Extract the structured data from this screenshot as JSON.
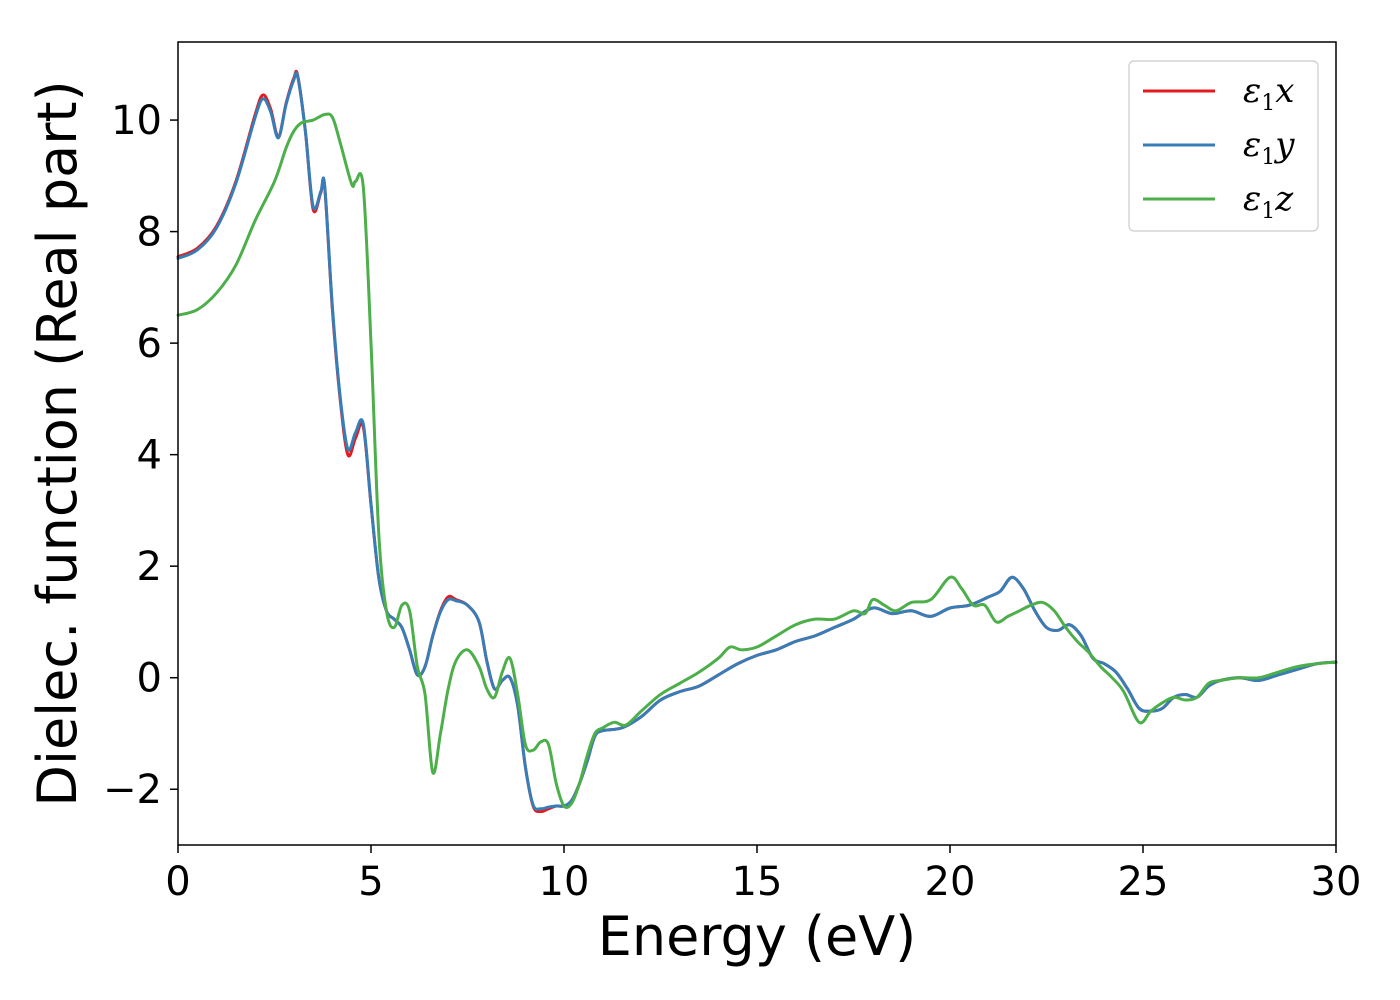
{
  "chart_data": {
    "type": "line",
    "title": "",
    "xlabel": "Energy (eV)",
    "ylabel": "Dielec. function (Real part)",
    "xlim": [
      0,
      30
    ],
    "ylim": [
      -3.0,
      11.4
    ],
    "xticks": [
      0,
      5,
      10,
      15,
      20,
      25,
      30
    ],
    "yticks": [
      -2,
      0,
      2,
      4,
      6,
      8,
      10
    ],
    "ytick_labels": [
      "−2",
      "0",
      "2",
      "4",
      "6",
      "8",
      "10"
    ],
    "grid": false,
    "legend_position": "top-right",
    "series": [
      {
        "name": "ε1x",
        "symbol": "ε",
        "subscript": "1",
        "axis": "x",
        "color": "#e41a1c",
        "x": [
          0,
          0.5,
          1.0,
          1.5,
          2.0,
          2.2,
          2.4,
          2.6,
          2.8,
          3.0,
          3.1,
          3.3,
          3.5,
          3.7,
          3.8,
          4.0,
          4.2,
          4.4,
          4.6,
          4.8,
          5.0,
          5.2,
          5.4,
          5.6,
          5.8,
          6.0,
          6.2,
          6.4,
          6.6,
          6.8,
          7.0,
          7.2,
          7.5,
          7.8,
          8.0,
          8.2,
          8.4,
          8.6,
          8.8,
          9.0,
          9.2,
          9.4,
          9.6,
          9.8,
          10.0,
          10.2,
          10.4,
          10.6,
          10.8,
          11.0,
          11.5,
          12.0,
          12.5,
          13.0,
          13.5,
          14.0,
          14.5,
          15.0,
          15.5,
          16.0,
          16.5,
          17.0,
          17.5,
          18.0,
          18.5,
          19.0,
          19.5,
          20.0,
          20.5,
          21.0,
          21.3,
          21.6,
          21.9,
          22.2,
          22.5,
          22.8,
          23.1,
          23.4,
          23.7,
          24.0,
          24.3,
          24.6,
          24.9,
          25.2,
          25.5,
          25.8,
          26.1,
          26.4,
          26.7,
          27.0,
          27.5,
          28.0,
          28.5,
          29.0,
          29.5,
          30.0
        ],
        "y": [
          7.55,
          7.7,
          8.1,
          8.9,
          10.1,
          10.45,
          10.2,
          9.7,
          10.3,
          10.75,
          10.8,
          9.8,
          8.4,
          8.7,
          8.8,
          6.6,
          5.0,
          4.0,
          4.3,
          4.5,
          3.1,
          1.8,
          1.2,
          1.05,
          0.9,
          0.5,
          0.05,
          0.2,
          0.75,
          1.2,
          1.45,
          1.4,
          1.3,
          1.0,
          0.3,
          -0.2,
          -0.05,
          0.0,
          -0.5,
          -1.6,
          -2.3,
          -2.4,
          -2.35,
          -2.3,
          -2.3,
          -2.2,
          -1.9,
          -1.5,
          -1.05,
          -0.95,
          -0.9,
          -0.7,
          -0.4,
          -0.25,
          -0.15,
          0.05,
          0.25,
          0.4,
          0.5,
          0.65,
          0.75,
          0.9,
          1.05,
          1.25,
          1.15,
          1.2,
          1.1,
          1.25,
          1.3,
          1.45,
          1.55,
          1.8,
          1.6,
          1.2,
          0.9,
          0.85,
          0.95,
          0.75,
          0.35,
          0.25,
          0.1,
          -0.2,
          -0.55,
          -0.6,
          -0.55,
          -0.35,
          -0.3,
          -0.35,
          -0.15,
          -0.05,
          0.0,
          -0.05,
          0.05,
          0.15,
          0.25,
          0.28
        ]
      },
      {
        "name": "ε1y",
        "symbol": "ε",
        "subscript": "1",
        "axis": "y",
        "color": "#377eb8",
        "x": [
          0,
          0.5,
          1.0,
          1.5,
          2.0,
          2.2,
          2.4,
          2.6,
          2.8,
          3.0,
          3.1,
          3.3,
          3.5,
          3.7,
          3.8,
          4.0,
          4.2,
          4.4,
          4.6,
          4.8,
          5.0,
          5.2,
          5.4,
          5.6,
          5.8,
          6.0,
          6.2,
          6.4,
          6.6,
          6.8,
          7.0,
          7.2,
          7.5,
          7.8,
          8.0,
          8.2,
          8.4,
          8.6,
          8.8,
          9.0,
          9.2,
          9.4,
          9.6,
          9.8,
          10.0,
          10.2,
          10.4,
          10.6,
          10.8,
          11.0,
          11.5,
          12.0,
          12.5,
          13.0,
          13.5,
          14.0,
          14.5,
          15.0,
          15.5,
          16.0,
          16.5,
          17.0,
          17.5,
          18.0,
          18.5,
          19.0,
          19.5,
          20.0,
          20.5,
          21.0,
          21.3,
          21.6,
          21.9,
          22.2,
          22.5,
          22.8,
          23.1,
          23.4,
          23.7,
          24.0,
          24.3,
          24.6,
          24.9,
          25.2,
          25.5,
          25.8,
          26.1,
          26.4,
          26.7,
          27.0,
          27.5,
          28.0,
          28.5,
          29.0,
          29.5,
          30.0
        ],
        "y": [
          7.52,
          7.67,
          8.07,
          8.87,
          10.05,
          10.38,
          10.15,
          9.68,
          10.28,
          10.72,
          10.78,
          9.8,
          8.45,
          8.72,
          8.82,
          6.65,
          5.05,
          4.1,
          4.4,
          4.55,
          3.12,
          1.8,
          1.2,
          1.05,
          0.9,
          0.5,
          0.05,
          0.2,
          0.75,
          1.18,
          1.4,
          1.38,
          1.3,
          1.0,
          0.3,
          -0.2,
          -0.05,
          0.0,
          -0.5,
          -1.6,
          -2.28,
          -2.35,
          -2.32,
          -2.3,
          -2.3,
          -2.2,
          -1.9,
          -1.5,
          -1.05,
          -0.95,
          -0.9,
          -0.7,
          -0.4,
          -0.25,
          -0.15,
          0.05,
          0.25,
          0.4,
          0.5,
          0.65,
          0.75,
          0.9,
          1.05,
          1.25,
          1.15,
          1.2,
          1.1,
          1.25,
          1.3,
          1.45,
          1.55,
          1.8,
          1.6,
          1.2,
          0.9,
          0.85,
          0.95,
          0.75,
          0.35,
          0.25,
          0.1,
          -0.2,
          -0.55,
          -0.6,
          -0.55,
          -0.35,
          -0.3,
          -0.35,
          -0.15,
          -0.05,
          0.0,
          -0.05,
          0.05,
          0.15,
          0.25,
          0.28
        ]
      },
      {
        "name": "ε1z",
        "symbol": "ε",
        "subscript": "1",
        "axis": "z",
        "color": "#4daf4a",
        "x": [
          0,
          0.5,
          1.0,
          1.5,
          2.0,
          2.5,
          2.8,
          3.0,
          3.2,
          3.5,
          3.8,
          4.0,
          4.2,
          4.5,
          4.6,
          4.8,
          5.0,
          5.2,
          5.4,
          5.6,
          5.8,
          6.0,
          6.2,
          6.4,
          6.6,
          6.8,
          7.0,
          7.2,
          7.5,
          7.8,
          8.0,
          8.2,
          8.4,
          8.6,
          8.8,
          9.0,
          9.2,
          9.4,
          9.6,
          9.8,
          10.0,
          10.2,
          10.4,
          10.6,
          10.8,
          11.0,
          11.3,
          11.6,
          12.0,
          12.5,
          13.0,
          13.5,
          14.0,
          14.3,
          14.6,
          15.0,
          15.5,
          16.0,
          16.5,
          17.0,
          17.5,
          17.8,
          18.0,
          18.3,
          18.6,
          19.0,
          19.5,
          20.0,
          20.3,
          20.6,
          20.9,
          21.2,
          21.5,
          21.8,
          22.1,
          22.4,
          22.7,
          23.0,
          23.3,
          23.6,
          23.9,
          24.2,
          24.5,
          24.9,
          25.2,
          25.5,
          25.8,
          26.1,
          26.4,
          26.7,
          27.0,
          27.5,
          28.0,
          28.5,
          29.0,
          29.5,
          30.0
        ],
        "y": [
          6.5,
          6.6,
          6.9,
          7.4,
          8.2,
          8.9,
          9.5,
          9.8,
          9.95,
          10.0,
          10.1,
          10.05,
          9.6,
          8.85,
          8.9,
          8.8,
          6.0,
          2.6,
          1.2,
          0.9,
          1.3,
          1.2,
          0.2,
          -0.3,
          -1.7,
          -1.0,
          -0.2,
          0.3,
          0.5,
          0.2,
          -0.2,
          -0.35,
          0.1,
          0.35,
          -0.3,
          -1.2,
          -1.3,
          -1.15,
          -1.2,
          -1.9,
          -2.3,
          -2.25,
          -1.9,
          -1.4,
          -1.0,
          -0.9,
          -0.8,
          -0.85,
          -0.6,
          -0.3,
          -0.1,
          0.1,
          0.35,
          0.55,
          0.5,
          0.55,
          0.75,
          0.95,
          1.05,
          1.05,
          1.2,
          1.15,
          1.4,
          1.3,
          1.2,
          1.35,
          1.4,
          1.8,
          1.6,
          1.3,
          1.3,
          1.0,
          1.1,
          1.2,
          1.3,
          1.35,
          1.2,
          0.9,
          0.65,
          0.45,
          0.2,
          0.0,
          -0.25,
          -0.8,
          -0.6,
          -0.45,
          -0.35,
          -0.4,
          -0.35,
          -0.1,
          -0.05,
          0.0,
          0.0,
          0.1,
          0.2,
          0.25,
          0.28
        ]
      }
    ]
  }
}
